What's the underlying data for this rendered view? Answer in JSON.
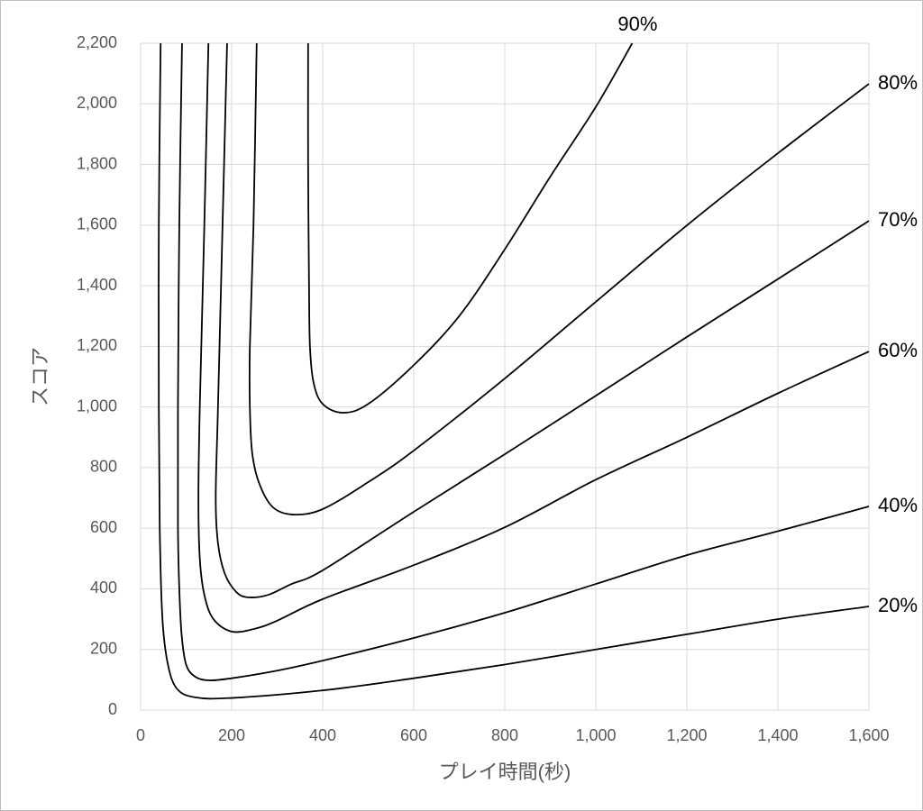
{
  "chart_data": {
    "type": "line",
    "x_label": "プレイ時間(秒)",
    "y_label": "スコア",
    "xlim": [
      0,
      1600
    ],
    "xticks": [
      0,
      200,
      400,
      600,
      800,
      {
        "value": 1000,
        "label": "1,000"
      },
      {
        "value": 1200,
        "label": "1,200"
      },
      {
        "value": 1400,
        "label": "1,400"
      },
      {
        "value": 1600,
        "label": "1,600"
      }
    ],
    "ylim": [
      0,
      2200
    ],
    "yticks": [
      0,
      200,
      400,
      600,
      800,
      {
        "value": 1000,
        "label": "1,000"
      },
      {
        "value": 1200,
        "label": "1,200"
      },
      {
        "value": 1400,
        "label": "1,400"
      },
      {
        "value": 1600,
        "label": "1,600"
      },
      {
        "value": 1800,
        "label": "1,800"
      },
      {
        "value": 2000,
        "label": "2,000"
      },
      {
        "value": 2200,
        "label": "2,200"
      }
    ],
    "grid": true,
    "series": [
      {
        "name": "20%",
        "color": "#000000",
        "x": [
          44,
          40,
          40,
          42,
          48,
          60,
          80,
          120,
          200,
          400,
          600,
          800,
          1000,
          1200,
          1400,
          1600
        ],
        "values": [
          2200,
          1600,
          1000,
          600,
          300,
          150,
          70,
          42,
          40,
          65,
          105,
          150,
          200,
          250,
          300,
          342
        ]
      },
      {
        "name": "40%",
        "color": "#000000",
        "x": [
          91,
          85,
          82,
          82,
          85,
          90,
          100,
          120,
          150,
          200,
          300,
          400,
          600,
          800,
          1000,
          1200,
          1400,
          1600
        ],
        "values": [
          2200,
          1600,
          1000,
          600,
          400,
          250,
          150,
          110,
          98,
          105,
          130,
          163,
          238,
          321,
          416,
          511,
          590,
          672
        ]
      },
      {
        "name": "60%",
        "color": "#000000",
        "x": [
          149,
          140,
          130,
          127,
          130,
          140,
          160,
          200,
          250,
          300,
          400,
          600,
          800,
          1000,
          1200,
          1400,
          1600
        ],
        "values": [
          2200,
          1600,
          1000,
          700,
          500,
          380,
          300,
          259,
          268,
          295,
          366,
          478,
          603,
          760,
          900,
          1045,
          1183
        ]
      },
      {
        "name": "70%",
        "color": "#000000",
        "x": [
          190,
          180,
          170,
          165,
          170,
          185,
          210,
          236,
          280,
          330,
          400,
          600,
          800,
          1000,
          1200,
          1400,
          1600
        ],
        "values": [
          2200,
          1600,
          1000,
          700,
          550,
          450,
          390,
          372,
          380,
          415,
          461,
          654,
          844,
          1037,
          1231,
          1422,
          1614
        ]
      },
      {
        "name": "80%",
        "color": "#000000",
        "x": [
          255,
          248,
          240,
          240,
          245,
          260,
          290,
          335,
          400,
          500,
          600,
          800,
          1000,
          1200,
          1400,
          1600
        ],
        "values": [
          2200,
          1600,
          1200,
          1000,
          850,
          750,
          670,
          645,
          663,
          752,
          856,
          1094,
          1347,
          1599,
          1837,
          2066
        ]
      },
      {
        "name": "90%",
        "color": "#000000",
        "x": [
          368,
          368,
          370,
          372,
          380,
          400,
          444,
          500,
          600,
          700,
          800,
          900,
          1000,
          1080
        ],
        "values": [
          2200,
          1800,
          1400,
          1200,
          1080,
          1010,
          981,
          1010,
          1138,
          1300,
          1520,
          1760,
          1990,
          2200
        ]
      }
    ]
  }
}
